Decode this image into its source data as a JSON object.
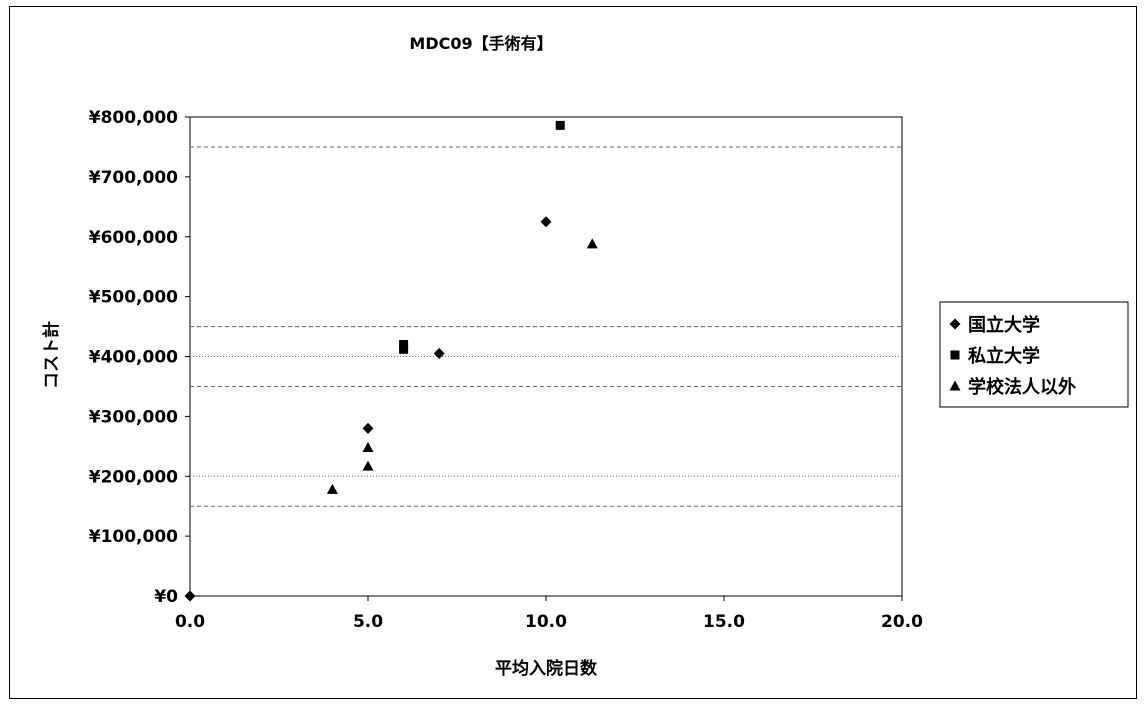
{
  "chart_data": {
    "type": "scatter",
    "title": "MDC09【手術有】",
    "xlabel": "平均入院日数",
    "ylabel": "コスト計",
    "xlim": [
      0,
      20
    ],
    "ylim": [
      0,
      800000
    ],
    "x_ticks": [
      "0.0",
      "5.0",
      "10.0",
      "15.0",
      "20.0"
    ],
    "y_ticks": [
      "¥0",
      "¥100,000",
      "¥200,000",
      "¥300,000",
      "¥400,000",
      "¥500,000",
      "¥600,000",
      "¥700,000",
      "¥800,000"
    ],
    "legend_position": "right",
    "grid": false,
    "series": [
      {
        "name": "国立大学",
        "marker": "diamond",
        "points": [
          [
            0.0,
            0
          ],
          [
            5.0,
            280000
          ],
          [
            7.0,
            405000
          ],
          [
            10.0,
            625000
          ]
        ]
      },
      {
        "name": "私立大学",
        "marker": "square",
        "points": [
          [
            6.0,
            412000
          ],
          [
            6.0,
            420000
          ],
          [
            10.4,
            786000
          ]
        ]
      },
      {
        "name": "学校法人以外",
        "marker": "triangle",
        "points": [
          [
            4.0,
            178000
          ],
          [
            5.0,
            217000
          ],
          [
            5.0,
            248000
          ],
          [
            11.3,
            588000
          ]
        ]
      }
    ],
    "reference_lines": [
      {
        "y": 750000,
        "style": "dashed"
      },
      {
        "y": 450000,
        "style": "dashed"
      },
      {
        "y": 400000,
        "style": "dotted"
      },
      {
        "y": 350000,
        "style": "dashed"
      },
      {
        "y": 200000,
        "style": "dotted"
      },
      {
        "y": 150000,
        "style": "dashed"
      }
    ]
  }
}
